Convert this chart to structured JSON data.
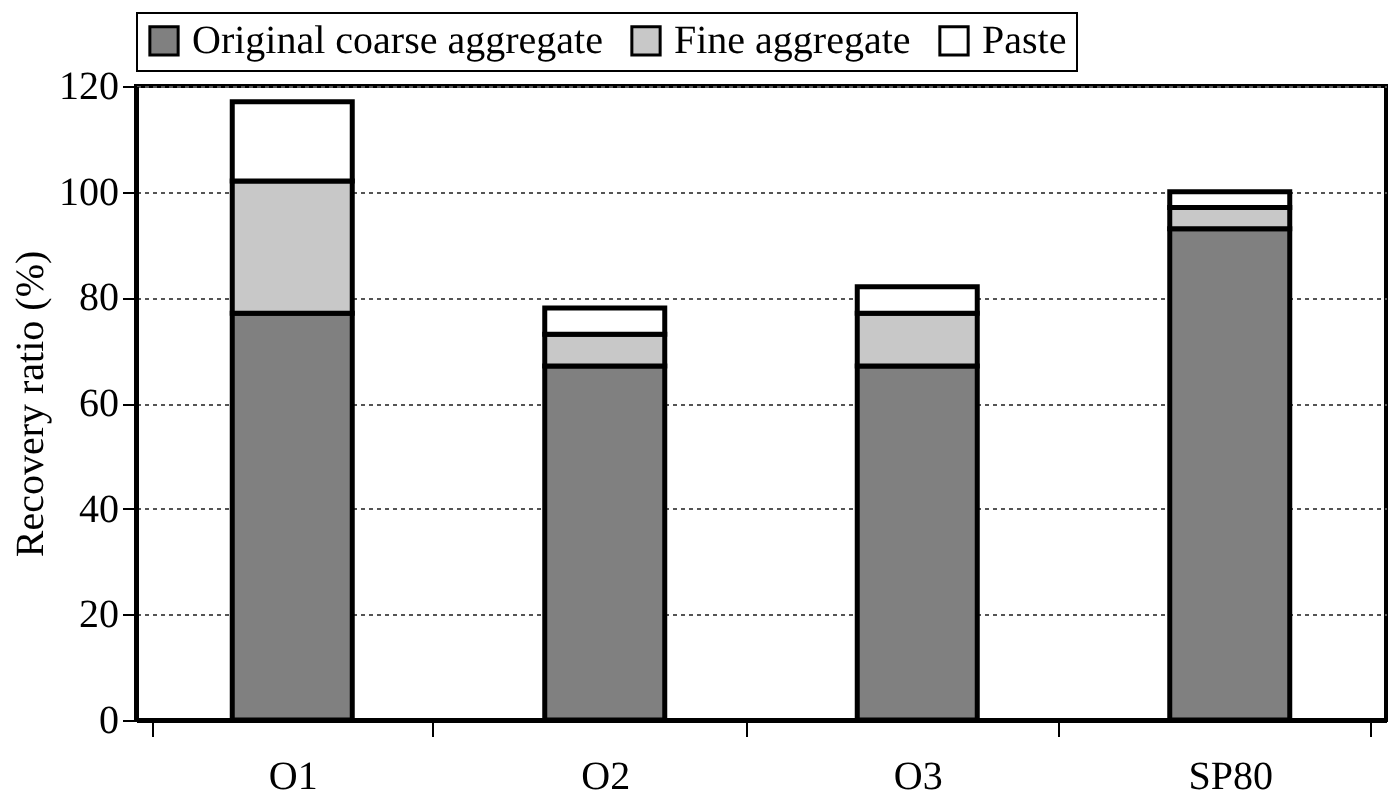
{
  "chart_data": {
    "type": "bar",
    "stacked": true,
    "ylabel": "Recovery ratio (%)",
    "categories": [
      "O1",
      "O2",
      "O3",
      "SP80"
    ],
    "series": [
      {
        "name": "Original coarse aggregate",
        "color": "#808080",
        "values": [
          77,
          67,
          67,
          93
        ]
      },
      {
        "name": "Fine aggregate",
        "color": "#c8c8c8",
        "values": [
          25,
          6,
          10,
          4
        ]
      },
      {
        "name": "Paste",
        "color": "#ffffff",
        "values": [
          15,
          5,
          5,
          3
        ]
      }
    ],
    "ylim": [
      0,
      120
    ],
    "yticks": [
      0,
      20,
      40,
      60,
      80,
      100,
      120
    ],
    "grid": "y",
    "legend": "top"
  }
}
